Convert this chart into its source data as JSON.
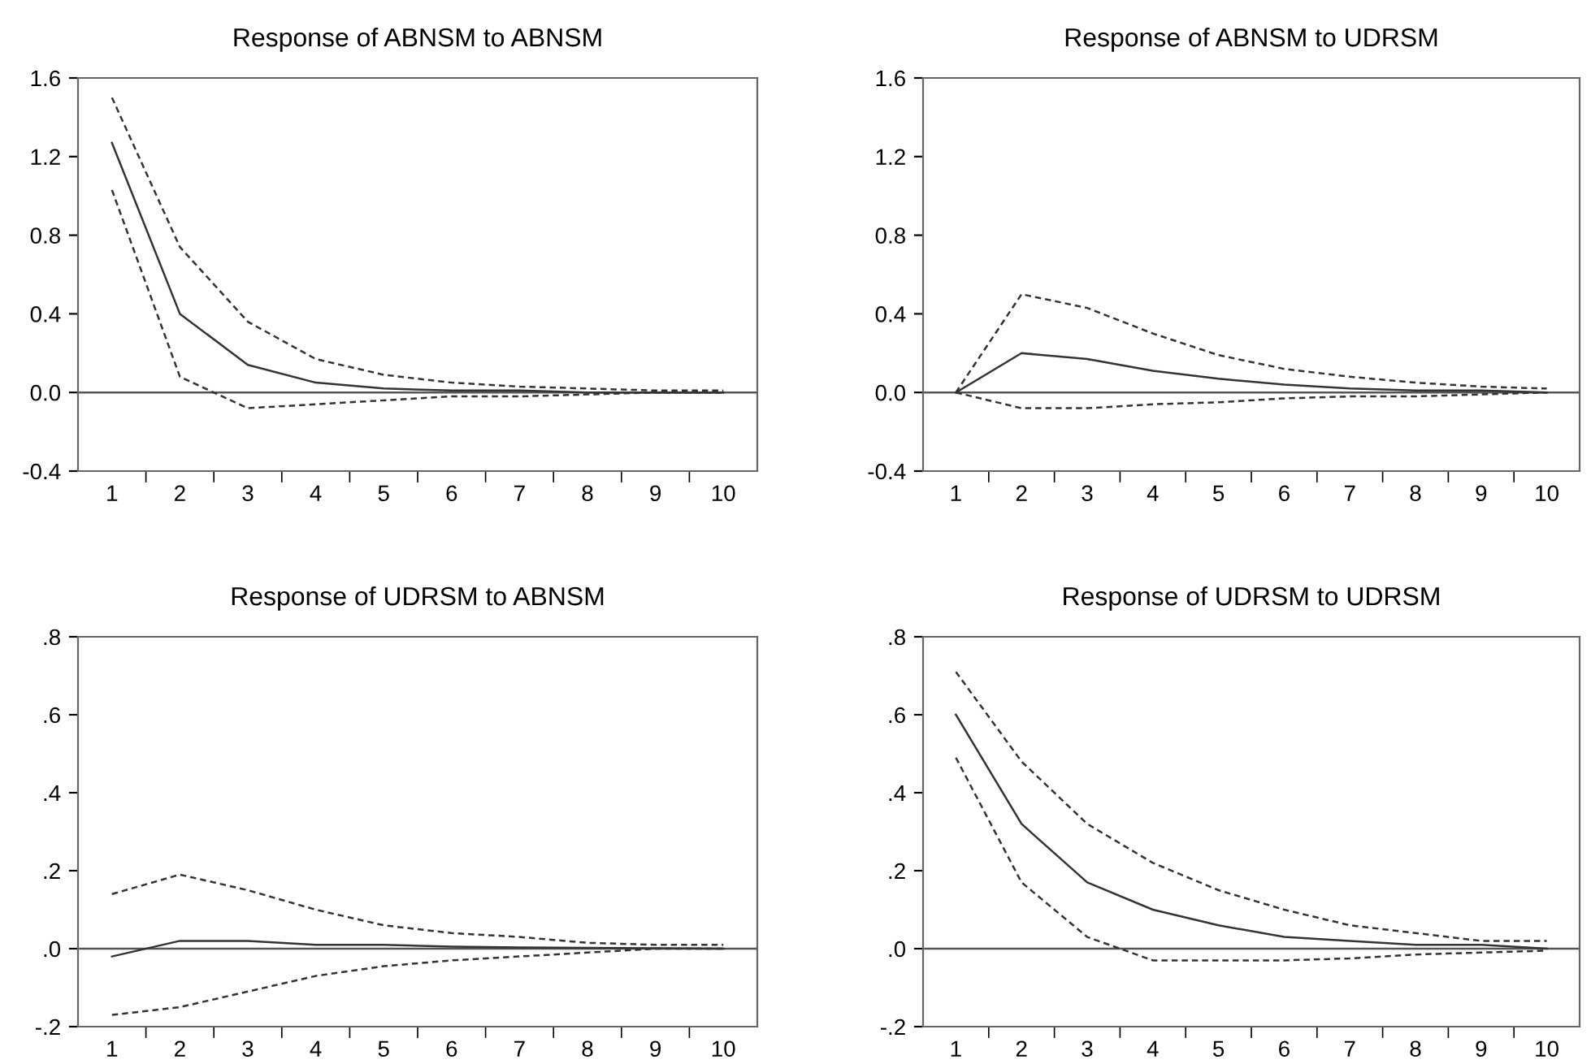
{
  "chart_data": [
    {
      "type": "line",
      "title": "Response of ABNSM to ABNSM",
      "categories": [
        "1",
        "2",
        "3",
        "4",
        "5",
        "6",
        "7",
        "8",
        "9",
        "10"
      ],
      "ylim": [
        -0.4,
        1.6
      ],
      "yticks": [
        -0.4,
        {
          "value": 0,
          "label": "0.0"
        },
        0.4,
        0.8,
        1.2,
        1.6
      ],
      "grid": false,
      "legend": false,
      "ref_lines": [
        {
          "axis": "y",
          "value": 0,
          "color": "#555555"
        }
      ],
      "series": [
        {
          "color": "#333333",
          "line_style": "solid",
          "values": [
            1.27,
            0.4,
            0.14,
            0.05,
            0.02,
            0.01,
            0.01,
            0.0,
            0.0,
            0.0
          ]
        },
        {
          "color": "#333333",
          "line_style": "dashed",
          "values": [
            1.5,
            0.74,
            0.36,
            0.17,
            0.09,
            0.05,
            0.03,
            0.02,
            0.01,
            0.01
          ]
        },
        {
          "color": "#333333",
          "line_style": "dashed",
          "values": [
            1.03,
            0.08,
            -0.08,
            -0.06,
            -0.04,
            -0.02,
            -0.02,
            -0.01,
            0.0,
            0.0
          ]
        }
      ]
    },
    {
      "type": "line",
      "title": "Response of ABNSM to UDRSM",
      "categories": [
        "1",
        "2",
        "3",
        "4",
        "5",
        "6",
        "7",
        "8",
        "9",
        "10"
      ],
      "ylim": [
        -0.4,
        1.6
      ],
      "yticks": [
        -0.4,
        {
          "value": 0,
          "label": "0.0"
        },
        0.4,
        0.8,
        1.2,
        1.6
      ],
      "grid": false,
      "legend": false,
      "ref_lines": [
        {
          "axis": "y",
          "value": 0,
          "color": "#555555"
        }
      ],
      "series": [
        {
          "color": "#333333",
          "line_style": "solid",
          "values": [
            0.0,
            0.2,
            0.17,
            0.11,
            0.07,
            0.04,
            0.02,
            0.01,
            0.01,
            0.0
          ]
        },
        {
          "color": "#333333",
          "line_style": "dashed",
          "values": [
            0.0,
            0.5,
            0.43,
            0.3,
            0.19,
            0.12,
            0.08,
            0.05,
            0.03,
            0.02
          ]
        },
        {
          "color": "#333333",
          "line_style": "dashed",
          "values": [
            0.0,
            -0.08,
            -0.08,
            -0.06,
            -0.05,
            -0.03,
            -0.02,
            -0.02,
            -0.01,
            0.0
          ]
        }
      ]
    },
    {
      "type": "line",
      "title": "Response of UDRSM to ABNSM",
      "categories": [
        "1",
        "2",
        "3",
        "4",
        "5",
        "6",
        "7",
        "8",
        "9",
        "10"
      ],
      "ylim": [
        -0.2,
        0.8
      ],
      "yticks": [
        {
          "value": -0.2,
          "label": "-.2"
        },
        {
          "value": 0,
          "label": ".0"
        },
        {
          "value": 0.2,
          "label": ".2"
        },
        {
          "value": 0.4,
          "label": ".4"
        },
        {
          "value": 0.6,
          "label": ".6"
        },
        {
          "value": 0.8,
          "label": ".8"
        }
      ],
      "grid": false,
      "legend": false,
      "ref_lines": [
        {
          "axis": "y",
          "value": 0,
          "color": "#555555"
        }
      ],
      "series": [
        {
          "color": "#333333",
          "line_style": "solid",
          "values": [
            -0.02,
            0.02,
            0.02,
            0.01,
            0.01,
            0.005,
            0.003,
            0.002,
            0.001,
            0.0
          ]
        },
        {
          "color": "#333333",
          "line_style": "dashed",
          "values": [
            0.14,
            0.19,
            0.15,
            0.1,
            0.06,
            0.04,
            0.03,
            0.015,
            0.01,
            0.01
          ]
        },
        {
          "color": "#333333",
          "line_style": "dashed",
          "values": [
            -0.17,
            -0.15,
            -0.11,
            -0.07,
            -0.045,
            -0.03,
            -0.02,
            -0.01,
            0.0,
            0.0
          ]
        }
      ]
    },
    {
      "type": "line",
      "title": "Response of UDRSM to UDRSM",
      "categories": [
        "1",
        "2",
        "3",
        "4",
        "5",
        "6",
        "7",
        "8",
        "9",
        "10"
      ],
      "ylim": [
        -0.2,
        0.8
      ],
      "yticks": [
        {
          "value": -0.2,
          "label": "-.2"
        },
        {
          "value": 0,
          "label": ".0"
        },
        {
          "value": 0.2,
          "label": ".2"
        },
        {
          "value": 0.4,
          "label": ".4"
        },
        {
          "value": 0.6,
          "label": ".6"
        },
        {
          "value": 0.8,
          "label": ".8"
        }
      ],
      "grid": false,
      "legend": false,
      "ref_lines": [
        {
          "axis": "y",
          "value": 0,
          "color": "#555555"
        }
      ],
      "series": [
        {
          "color": "#333333",
          "line_style": "solid",
          "values": [
            0.6,
            0.32,
            0.17,
            0.1,
            0.06,
            0.03,
            0.02,
            0.01,
            0.01,
            0.0
          ]
        },
        {
          "color": "#333333",
          "line_style": "dashed",
          "values": [
            0.71,
            0.48,
            0.32,
            0.22,
            0.15,
            0.1,
            0.06,
            0.04,
            0.02,
            0.02
          ]
        },
        {
          "color": "#333333",
          "line_style": "dashed",
          "values": [
            0.49,
            0.17,
            0.03,
            -0.03,
            -0.03,
            -0.03,
            -0.025,
            -0.015,
            -0.01,
            -0.005
          ]
        }
      ]
    }
  ]
}
